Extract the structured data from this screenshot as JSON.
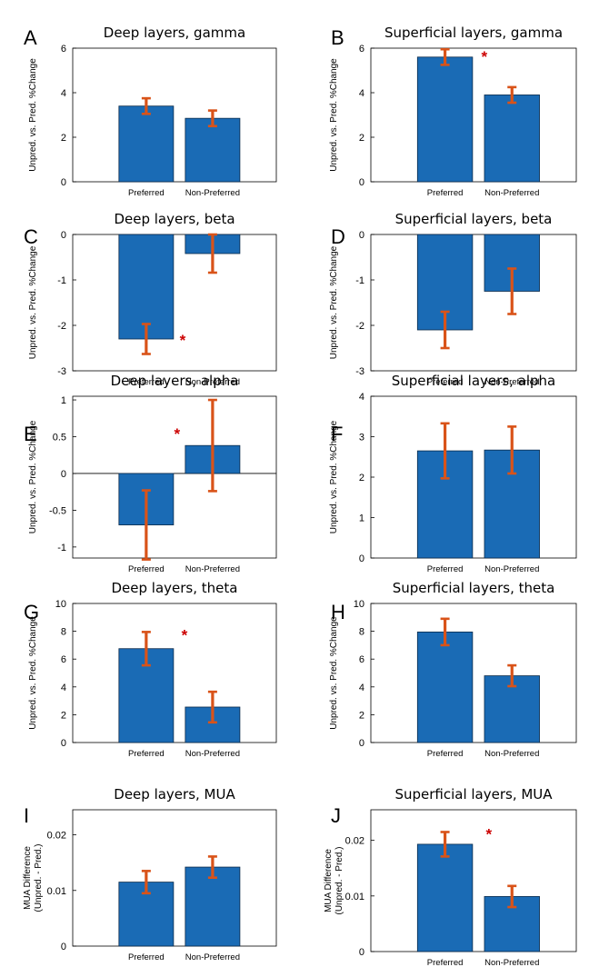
{
  "chart_data": [
    {
      "id": "A",
      "type": "bar",
      "title": "Deep layers, gamma",
      "categories": [
        "Preferred",
        "Non-Preferred"
      ],
      "values": [
        3.4,
        2.85
      ],
      "errors": [
        0.35,
        0.35
      ],
      "ylim": [
        0,
        6
      ],
      "yticks": [
        0,
        2,
        4,
        6
      ],
      "ytick_labels": [
        "0",
        "2",
        "4",
        "6"
      ],
      "ylabel": "Unpred. vs. Pred. %Change",
      "significant": [
        false,
        false
      ]
    },
    {
      "id": "B",
      "type": "bar",
      "title": "Superficial layers, gamma",
      "categories": [
        "Preferred",
        "Non-Preferred"
      ],
      "values": [
        5.6,
        3.9
      ],
      "errors": [
        0.35,
        0.35
      ],
      "ylim": [
        0,
        6
      ],
      "yticks": [
        0,
        2,
        4,
        6
      ],
      "ytick_labels": [
        "0",
        "2",
        "4",
        "6"
      ],
      "ylabel": "Unpred. vs. Pred. %Change",
      "significant": [
        true,
        false
      ]
    },
    {
      "id": "C",
      "type": "bar",
      "title": "Deep layers, beta",
      "categories": [
        "Preferred",
        "Non-Preferred"
      ],
      "values": [
        -2.3,
        -0.42
      ],
      "errors": [
        0.33,
        0.42
      ],
      "ylim": [
        -3,
        0
      ],
      "yticks": [
        -3,
        -2,
        -1,
        0
      ],
      "ytick_labels": [
        "-3",
        "-2",
        "-1",
        "0"
      ],
      "ylabel": "Unpred. vs. Pred. %Change",
      "significant": [
        true,
        false
      ]
    },
    {
      "id": "D",
      "type": "bar",
      "title": "Superficial layers, beta",
      "categories": [
        "Preferred",
        "Non-Preferred"
      ],
      "values": [
        -2.1,
        -1.25
      ],
      "errors": [
        0.4,
        0.5
      ],
      "ylim": [
        -3,
        0
      ],
      "yticks": [
        -3,
        -2,
        -1,
        0
      ],
      "ytick_labels": [
        "-3",
        "-2",
        "-1",
        "0"
      ],
      "ylabel": "Unpred. vs. Pred. %Change",
      "significant": [
        false,
        false
      ]
    },
    {
      "id": "E",
      "type": "bar",
      "title": "Deep layers, alpha",
      "categories": [
        "Preferred",
        "Non-Preferred"
      ],
      "values": [
        -0.7,
        0.38
      ],
      "errors": [
        0.47,
        0.62
      ],
      "ylim": [
        -1.15,
        1.05
      ],
      "yticks": [
        -1,
        -0.5,
        0,
        0.5,
        1
      ],
      "ytick_labels": [
        "-1",
        "-0.5",
        "0",
        "0.5",
        "1"
      ],
      "ylabel": "Unpred. vs. Pred. %Change",
      "significant": [
        false,
        true
      ]
    },
    {
      "id": "F",
      "type": "bar",
      "title": "Superficial layers, alpha",
      "categories": [
        "Preferred",
        "Non-Preferred"
      ],
      "values": [
        2.65,
        2.67
      ],
      "errors": [
        0.68,
        0.58
      ],
      "ylim": [
        0,
        4
      ],
      "yticks": [
        0,
        1,
        2,
        3,
        4
      ],
      "ytick_labels": [
        "0",
        "1",
        "2",
        "3",
        "4"
      ],
      "ylabel": "Unpred. vs. Pred. %Change",
      "significant": [
        false,
        false
      ]
    },
    {
      "id": "G",
      "type": "bar",
      "title": "Deep layers, theta",
      "categories": [
        "Preferred",
        "Non-Preferred"
      ],
      "values": [
        6.75,
        2.55
      ],
      "errors": [
        1.2,
        1.1
      ],
      "ylim": [
        0,
        10
      ],
      "yticks": [
        0,
        2,
        4,
        6,
        8,
        10
      ],
      "ytick_labels": [
        "0",
        "2",
        "4",
        "6",
        "8",
        "10"
      ],
      "ylabel": "Unpred. vs. Pred. %Change",
      "significant": [
        true,
        false
      ]
    },
    {
      "id": "H",
      "type": "bar",
      "title": "Superficial layers, theta",
      "categories": [
        "Preferred",
        "Non-Preferred"
      ],
      "values": [
        7.95,
        4.8
      ],
      "errors": [
        0.95,
        0.75
      ],
      "ylim": [
        0,
        10
      ],
      "yticks": [
        0,
        2,
        4,
        6,
        8,
        10
      ],
      "ytick_labels": [
        "0",
        "2",
        "4",
        "6",
        "8",
        "10"
      ],
      "ylabel": "Unpred. vs. Pred. %Change",
      "significant": [
        false,
        false
      ]
    },
    {
      "id": "I",
      "type": "bar",
      "title": "Deep layers, MUA",
      "categories": [
        "Preferred",
        "Non-Preferred"
      ],
      "values": [
        0.0115,
        0.0142
      ],
      "errors": [
        0.002,
        0.0019
      ],
      "ylim": [
        0,
        0.0245
      ],
      "yticks": [
        0,
        0.01,
        0.02
      ],
      "ytick_labels": [
        "0",
        "0.01",
        "0.02"
      ],
      "ylabel": [
        "MUA Difference",
        "(Unpred. - Pred.)"
      ],
      "significant": [
        false,
        false
      ]
    },
    {
      "id": "J",
      "type": "bar",
      "title": "Superficial layers, MUA",
      "categories": [
        "Preferred",
        "Non-Preferred"
      ],
      "values": [
        0.0193,
        0.0099
      ],
      "errors": [
        0.0022,
        0.0019
      ],
      "ylim": [
        0,
        0.0255
      ],
      "yticks": [
        0,
        0.01,
        0.02
      ],
      "ytick_labels": [
        "0",
        "0.01",
        "0.02"
      ],
      "ylabel": [
        "MUA Difference",
        "(Unpred. - Pred.)"
      ],
      "significant": [
        true,
        false
      ]
    }
  ],
  "style": {
    "bar_color": "#1a6bb5",
    "bar_edge": "#0a2a4a",
    "error_color": "#d95319",
    "star_color": "#cc0000",
    "axis_color": "#000000"
  }
}
